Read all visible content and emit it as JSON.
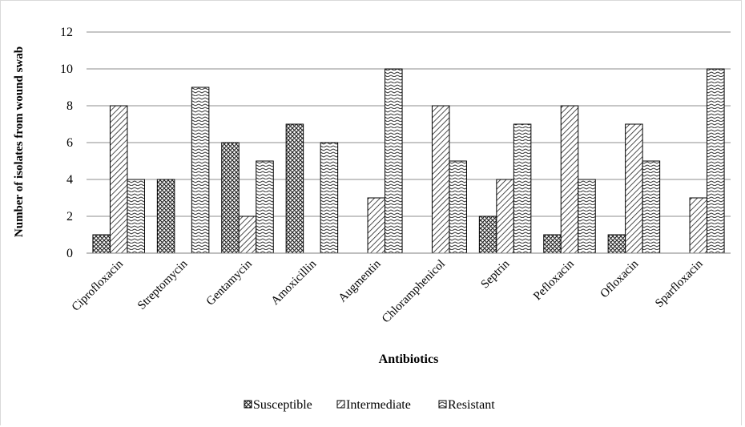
{
  "chart_data": {
    "type": "bar",
    "title": "",
    "xlabel": "Antibiotics",
    "ylabel": "Number of isolates from wound swab",
    "ylim": [
      0,
      12
    ],
    "yticks": [
      0,
      2,
      4,
      6,
      8,
      10,
      12
    ],
    "grid": "horizontal",
    "legend_position": "bottom",
    "categories": [
      "Ciprofloxacin",
      "Streptomycin",
      "Gentamycin",
      "Amoxicillin",
      "Augmentin",
      "Chloramphenicol",
      "Septrin",
      "Pefloxacin",
      "Ofloxacin",
      "Sparfloxacin"
    ],
    "series": [
      {
        "name": "Susceptible",
        "values": [
          1,
          4,
          6,
          7,
          0,
          0,
          2,
          1,
          1,
          0
        ],
        "pattern": "crosshatch"
      },
      {
        "name": "Intermediate",
        "values": [
          8,
          0,
          2,
          0,
          3,
          8,
          4,
          8,
          7,
          3
        ],
        "pattern": "diagonal"
      },
      {
        "name": "Resistant",
        "values": [
          4,
          9,
          5,
          6,
          10,
          5,
          7,
          4,
          5,
          10
        ],
        "pattern": "zigzag"
      }
    ]
  }
}
